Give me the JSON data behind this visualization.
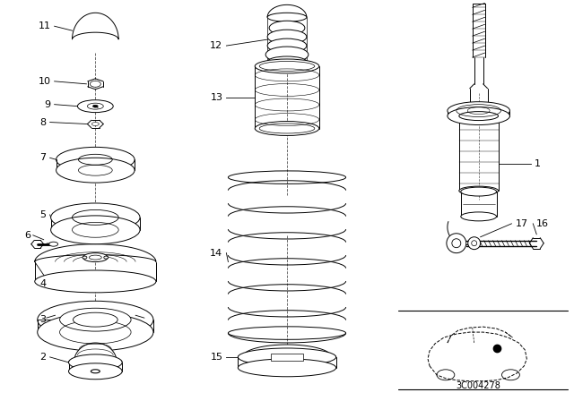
{
  "background_color": "#ffffff",
  "line_color": "#000000",
  "fig_width": 6.4,
  "fig_height": 4.48,
  "dpi": 100,
  "code_text": "3C004278"
}
